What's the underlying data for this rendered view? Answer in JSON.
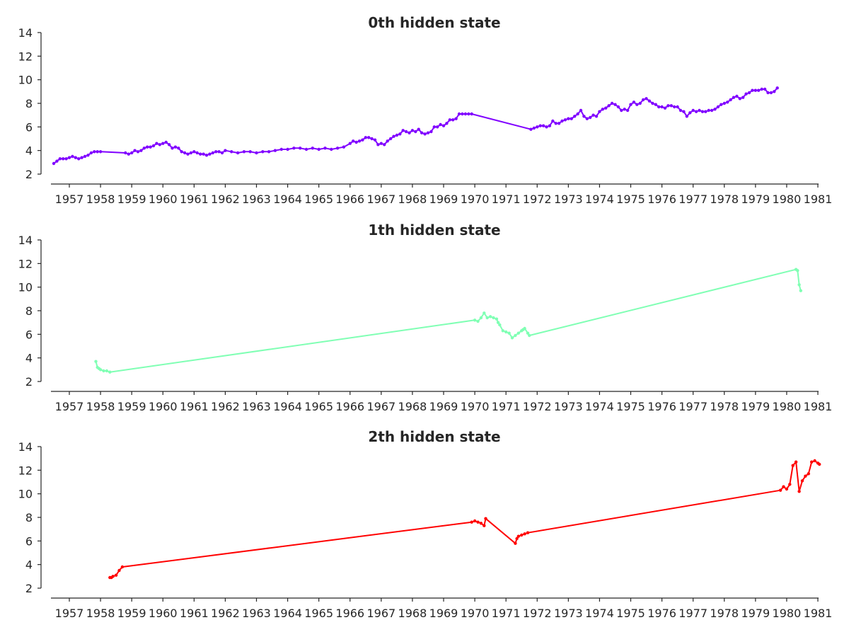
{
  "chart_data": [
    {
      "type": "line",
      "title": "0th hidden state",
      "color": "#8000ff",
      "ylim": [
        2,
        14
      ],
      "yticks": [
        2,
        4,
        6,
        8,
        10,
        12,
        14
      ],
      "xlim": [
        1956.5,
        1981.0
      ],
      "xticks": [
        "1957",
        "1958",
        "1959",
        "1960",
        "1961",
        "1962",
        "1963",
        "1964",
        "1965",
        "1966",
        "1967",
        "1968",
        "1969",
        "1970",
        "1971",
        "1972",
        "1973",
        "1974",
        "1975",
        "1976",
        "1977",
        "1978",
        "1979",
        "1980",
        "1981"
      ],
      "x": [
        1956.5,
        1956.6,
        1956.7,
        1956.8,
        1956.9,
        1957.0,
        1957.1,
        1957.2,
        1957.3,
        1957.4,
        1957.5,
        1957.6,
        1957.7,
        1957.8,
        1957.9,
        1958.0,
        1958.8,
        1958.9,
        1959.0,
        1959.1,
        1959.2,
        1959.3,
        1959.4,
        1959.5,
        1959.6,
        1959.7,
        1959.8,
        1959.9,
        1960.0,
        1960.1,
        1960.2,
        1960.3,
        1960.4,
        1960.5,
        1960.6,
        1960.7,
        1960.8,
        1960.9,
        1961.0,
        1961.1,
        1961.2,
        1961.3,
        1961.4,
        1961.5,
        1961.6,
        1961.7,
        1961.8,
        1961.9,
        1962.0,
        1962.2,
        1962.4,
        1962.6,
        1962.8,
        1963.0,
        1963.2,
        1963.4,
        1963.6,
        1963.8,
        1964.0,
        1964.2,
        1964.4,
        1964.6,
        1964.8,
        1965.0,
        1965.2,
        1965.4,
        1965.6,
        1965.8,
        1966.0,
        1966.1,
        1966.2,
        1966.3,
        1966.4,
        1966.5,
        1966.6,
        1966.7,
        1966.8,
        1966.9,
        1967.0,
        1967.1,
        1967.2,
        1967.3,
        1967.4,
        1967.5,
        1967.6,
        1967.7,
        1967.8,
        1967.9,
        1968.0,
        1968.1,
        1968.2,
        1968.3,
        1968.4,
        1968.5,
        1968.6,
        1968.7,
        1968.8,
        1968.9,
        1969.0,
        1969.1,
        1969.2,
        1969.3,
        1969.4,
        1969.5,
        1969.6,
        1969.7,
        1969.8,
        1969.9,
        1971.8,
        1971.9,
        1972.0,
        1972.1,
        1972.2,
        1972.3,
        1972.4,
        1972.5,
        1972.6,
        1972.7,
        1972.8,
        1972.9,
        1973.0,
        1973.1,
        1973.2,
        1973.3,
        1973.4,
        1973.5,
        1973.6,
        1973.7,
        1973.8,
        1973.9,
        1974.0,
        1974.1,
        1974.2,
        1974.3,
        1974.4,
        1974.5,
        1974.6,
        1974.7,
        1974.8,
        1974.9,
        1975.0,
        1975.1,
        1975.2,
        1975.3,
        1975.4,
        1975.5,
        1975.6,
        1975.7,
        1975.8,
        1975.9,
        1976.0,
        1976.1,
        1976.2,
        1976.3,
        1976.4,
        1976.5,
        1976.6,
        1976.7,
        1976.8,
        1976.9,
        1977.0,
        1977.1,
        1977.2,
        1977.3,
        1977.4,
        1977.5,
        1977.6,
        1977.7,
        1977.8,
        1977.9,
        1978.0,
        1978.1,
        1978.2,
        1978.3,
        1978.4,
        1978.5,
        1978.6,
        1978.7,
        1978.8,
        1978.9,
        1979.0,
        1979.1,
        1979.2,
        1979.3,
        1979.4,
        1979.5,
        1979.6,
        1979.7
      ],
      "y": [
        2.9,
        3.1,
        3.3,
        3.3,
        3.3,
        3.4,
        3.5,
        3.4,
        3.3,
        3.4,
        3.5,
        3.6,
        3.8,
        3.9,
        3.9,
        3.9,
        3.8,
        3.7,
        3.8,
        4.0,
        3.9,
        4.0,
        4.2,
        4.3,
        4.3,
        4.4,
        4.6,
        4.5,
        4.6,
        4.7,
        4.5,
        4.2,
        4.3,
        4.2,
        3.9,
        3.8,
        3.7,
        3.8,
        3.9,
        3.8,
        3.7,
        3.7,
        3.6,
        3.7,
        3.8,
        3.9,
        3.9,
        3.8,
        4.0,
        3.9,
        3.8,
        3.9,
        3.9,
        3.8,
        3.9,
        3.9,
        4.0,
        4.1,
        4.1,
        4.2,
        4.2,
        4.1,
        4.2,
        4.1,
        4.2,
        4.1,
        4.2,
        4.3,
        4.6,
        4.8,
        4.7,
        4.8,
        4.9,
        5.1,
        5.1,
        5.0,
        4.9,
        4.5,
        4.6,
        4.5,
        4.8,
        5.0,
        5.2,
        5.3,
        5.4,
        5.7,
        5.6,
        5.5,
        5.7,
        5.6,
        5.8,
        5.5,
        5.4,
        5.5,
        5.6,
        6.0,
        6.0,
        6.2,
        6.1,
        6.3,
        6.6,
        6.6,
        6.7,
        7.1,
        7.1,
        7.1,
        7.1,
        7.1,
        5.8,
        5.9,
        6.0,
        6.1,
        6.1,
        6.0,
        6.1,
        6.5,
        6.3,
        6.3,
        6.5,
        6.6,
        6.7,
        6.7,
        6.9,
        7.1,
        7.4,
        6.9,
        6.7,
        6.8,
        7.0,
        6.9,
        7.3,
        7.5,
        7.6,
        7.8,
        8.0,
        7.9,
        7.7,
        7.4,
        7.5,
        7.4,
        7.9,
        8.1,
        7.9,
        8.0,
        8.3,
        8.4,
        8.2,
        8.0,
        7.9,
        7.7,
        7.7,
        7.6,
        7.8,
        7.8,
        7.7,
        7.7,
        7.4,
        7.3,
        6.9,
        7.2,
        7.4,
        7.3,
        7.4,
        7.3,
        7.3,
        7.4,
        7.4,
        7.5,
        7.7,
        7.9,
        8.0,
        8.1,
        8.3,
        8.5,
        8.6,
        8.4,
        8.5,
        8.8,
        8.9,
        9.1,
        9.1,
        9.1,
        9.2,
        9.2,
        8.9,
        8.9,
        9.0,
        9.3
      ]
    },
    {
      "type": "line",
      "title": "1th hidden state",
      "color": "#80ffb4",
      "ylim": [
        2,
        14
      ],
      "yticks": [
        2,
        4,
        6,
        8,
        10,
        12,
        14
      ],
      "xlim": [
        1956.5,
        1981.0
      ],
      "xticks": [
        "1957",
        "1958",
        "1959",
        "1960",
        "1961",
        "1962",
        "1963",
        "1964",
        "1965",
        "1966",
        "1967",
        "1968",
        "1969",
        "1970",
        "1971",
        "1972",
        "1973",
        "1974",
        "1975",
        "1976",
        "1977",
        "1978",
        "1979",
        "1980",
        "1981"
      ],
      "x": [
        1957.85,
        1957.9,
        1957.95,
        1958.0,
        1958.1,
        1958.2,
        1958.3,
        1970.0,
        1970.1,
        1970.2,
        1970.3,
        1970.4,
        1970.5,
        1970.6,
        1970.7,
        1970.75,
        1970.8,
        1970.9,
        1971.0,
        1971.1,
        1971.2,
        1971.3,
        1971.4,
        1971.5,
        1971.55,
        1971.6,
        1971.7,
        1971.75,
        1980.3,
        1980.35,
        1980.4,
        1980.45
      ],
      "y": [
        3.7,
        3.2,
        3.1,
        3.0,
        2.9,
        2.9,
        2.8,
        7.2,
        7.1,
        7.4,
        7.8,
        7.4,
        7.5,
        7.4,
        7.3,
        7.0,
        6.8,
        6.3,
        6.2,
        6.1,
        5.7,
        5.9,
        6.1,
        6.3,
        6.4,
        6.5,
        6.1,
        5.9,
        11.5,
        11.4,
        10.2,
        9.7
      ]
    },
    {
      "type": "line",
      "title": "2th hidden state",
      "color": "#ff0000",
      "ylim": [
        2,
        14
      ],
      "yticks": [
        2,
        4,
        6,
        8,
        10,
        12,
        14
      ],
      "xlim": [
        1956.5,
        1981.0
      ],
      "xticks": [
        "1957",
        "1958",
        "1959",
        "1960",
        "1961",
        "1962",
        "1963",
        "1964",
        "1965",
        "1966",
        "1967",
        "1968",
        "1969",
        "1970",
        "1971",
        "1972",
        "1973",
        "1974",
        "1975",
        "1976",
        "1977",
        "1978",
        "1979",
        "1980",
        "1981"
      ],
      "x": [
        1958.3,
        1958.35,
        1958.4,
        1958.5,
        1958.6,
        1958.7,
        1969.9,
        1970.0,
        1970.1,
        1970.2,
        1970.3,
        1970.35,
        1971.3,
        1971.35,
        1971.4,
        1971.5,
        1971.6,
        1971.7,
        1979.8,
        1979.9,
        1980.0,
        1980.1,
        1980.2,
        1980.3,
        1980.4,
        1980.5,
        1980.6,
        1980.7,
        1980.8,
        1980.9,
        1981.0,
        1981.05
      ],
      "y": [
        2.9,
        2.9,
        3.0,
        3.1,
        3.5,
        3.8,
        7.6,
        7.7,
        7.6,
        7.5,
        7.3,
        7.9,
        5.8,
        6.2,
        6.4,
        6.5,
        6.6,
        6.7,
        10.3,
        10.6,
        10.4,
        10.8,
        12.4,
        12.7,
        10.2,
        11.1,
        11.5,
        11.7,
        12.7,
        12.8,
        12.6,
        12.5
      ]
    }
  ]
}
